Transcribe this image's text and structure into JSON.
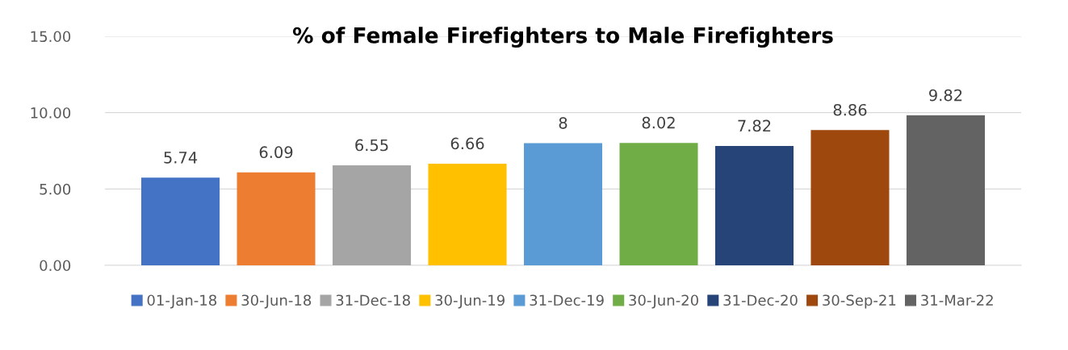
{
  "chart_data": {
    "type": "bar",
    "title": "% of Female Firefighters to Male Firefighters",
    "categories": [
      null
    ],
    "series": [
      {
        "name": "01-Jan-18",
        "color": "#4472c4",
        "values": [
          5.74
        ]
      },
      {
        "name": "30-Jun-18",
        "color": "#ed7d31",
        "values": [
          6.09
        ]
      },
      {
        "name": "31-Dec-18",
        "color": "#a5a5a5",
        "values": [
          6.55
        ]
      },
      {
        "name": "30-Jun-19",
        "color": "#ffc000",
        "values": [
          6.66
        ]
      },
      {
        "name": "31-Dec-19",
        "color": "#5b9bd5",
        "values": [
          8
        ]
      },
      {
        "name": "30-Jun-20",
        "color": "#70ad47",
        "values": [
          8.02
        ]
      },
      {
        "name": "31-Dec-20",
        "color": "#264478",
        "values": [
          7.82
        ]
      },
      {
        "name": "30-Sep-21",
        "color": "#9e480e",
        "values": [
          8.86
        ]
      },
      {
        "name": "31-Mar-22",
        "color": "#636363",
        "values": [
          9.82
        ]
      }
    ],
    "ylim": [
      0,
      15
    ],
    "yticks": [
      {
        "value": 0,
        "label": "0.00"
      },
      {
        "value": 5,
        "label": "5.00"
      },
      {
        "value": 10,
        "label": "10.00"
      },
      {
        "value": 15,
        "label": "15.00"
      }
    ],
    "grid": "y",
    "legend": "bottom",
    "data_labels": true
  }
}
